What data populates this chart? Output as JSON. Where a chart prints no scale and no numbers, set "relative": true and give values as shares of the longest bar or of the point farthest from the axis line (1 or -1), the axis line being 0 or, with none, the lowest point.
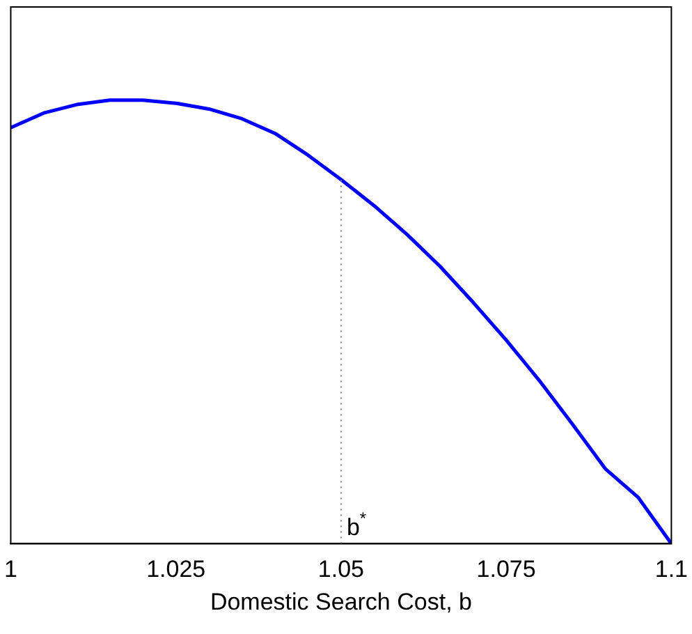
{
  "chart_data": {
    "type": "line",
    "xlabel": "Domestic Search Cost, b",
    "relative": true,
    "x": [
      1,
      1.005,
      1.01,
      1.015,
      1.02,
      1.025,
      1.03,
      1.035,
      1.04,
      1.045,
      1.05,
      1.055,
      1.06,
      1.065,
      1.07,
      1.075,
      1.08,
      1.085,
      1.09,
      1.095,
      1.1
    ],
    "series": [
      {
        "color": "#0000ff",
        "values": [
          0.938,
          0.971,
          0.99,
          1,
          1,
          0.993,
          0.98,
          0.958,
          0.925,
          0.876,
          0.821,
          0.762,
          0.697,
          0.625,
          0.544,
          0.459,
          0.368,
          0.27,
          0.169,
          0.104,
          0
        ]
      }
    ],
    "xlim": [
      1,
      1.1
    ],
    "xticks": [
      1,
      1.025,
      1.05,
      1.075,
      1.1
    ],
    "ref_lines": [
      {
        "axis": "x",
        "value": 1.05,
        "label": "b$^{*}$",
        "color": "#808080",
        "line_style": "dotted"
      }
    ],
    "grid": false,
    "legend": false,
    "marker": "none",
    "line_style": "solid"
  }
}
